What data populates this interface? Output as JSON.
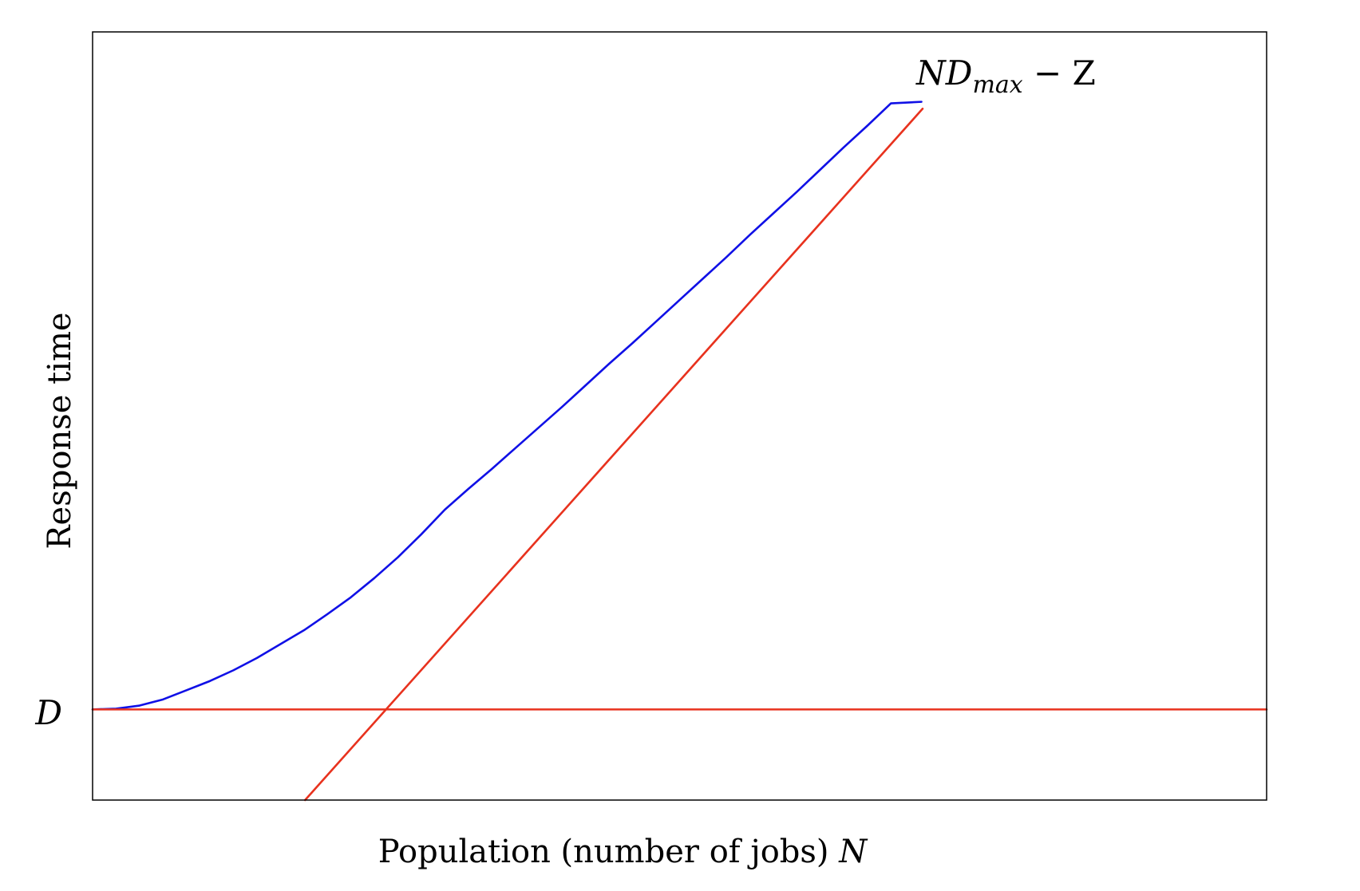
{
  "chart_data": {
    "type": "line",
    "title": "",
    "xlabel": "Population (number of jobs) ",
    "xlabel_symbol": "N",
    "ylabel": "Response time",
    "y_tick_label": "D",
    "annotation": {
      "base": "ND",
      "subscript": "max",
      "suffix": " − Z"
    },
    "xlim": [
      0,
      100
    ],
    "ylim": [
      0,
      100
    ],
    "grid": false,
    "legend": "none",
    "colors": {
      "response_time": "#1010e6",
      "bounds": "#e8321e",
      "frame": "#000000"
    },
    "series": [
      {
        "role": "response_time",
        "points": [
          [
            0,
            11.8
          ],
          [
            2,
            11.9
          ],
          [
            4,
            12.3
          ],
          [
            6,
            13.1
          ],
          [
            8,
            14.3
          ],
          [
            10,
            15.5
          ],
          [
            12,
            16.9
          ],
          [
            14,
            18.5
          ],
          [
            16,
            20.3
          ],
          [
            18,
            22.1
          ],
          [
            20,
            24.2
          ],
          [
            22,
            26.4
          ],
          [
            24,
            28.9
          ],
          [
            26,
            31.6
          ],
          [
            28,
            34.6
          ],
          [
            30,
            37.8
          ],
          [
            32,
            40.5
          ],
          [
            34,
            43.1
          ],
          [
            36,
            45.8
          ],
          [
            38,
            48.5
          ],
          [
            40,
            51.2
          ],
          [
            42,
            54.0
          ],
          [
            44,
            56.8
          ],
          [
            46,
            59.5
          ],
          [
            48,
            62.3
          ],
          [
            50,
            65.1
          ],
          [
            52,
            67.9
          ],
          [
            54,
            70.7
          ],
          [
            56,
            73.6
          ],
          [
            58,
            76.4
          ],
          [
            60,
            79.2
          ],
          [
            62,
            82.1
          ],
          [
            64,
            85.0
          ],
          [
            66,
            87.8
          ],
          [
            68,
            90.7
          ],
          [
            70.6,
            90.9
          ]
        ]
      },
      {
        "role": "bound_D",
        "points": [
          [
            0,
            11.8
          ],
          [
            100,
            11.8
          ]
        ]
      },
      {
        "role": "bound_NDmax_minus_Z",
        "points": [
          [
            18.1,
            0
          ],
          [
            70.7,
            90.0
          ]
        ]
      }
    ]
  }
}
